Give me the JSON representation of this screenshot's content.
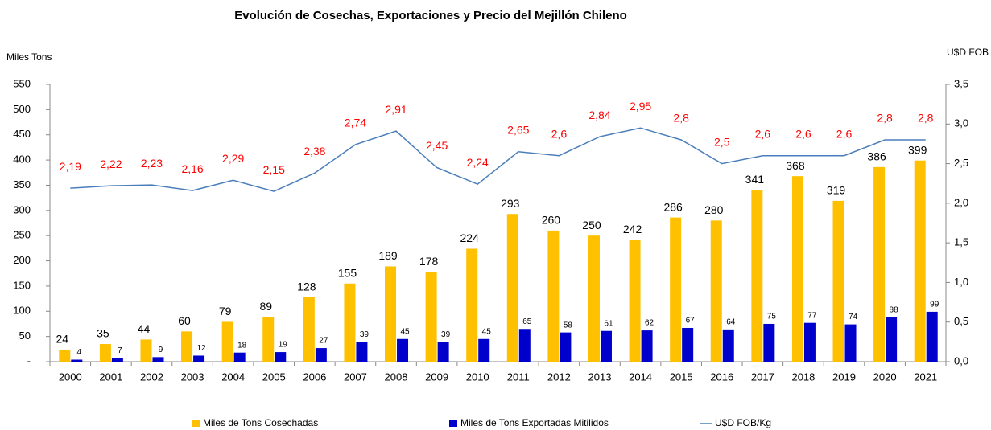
{
  "chart_data": {
    "type": "bar_line",
    "title": "Evolución de Cosechas, Exportaciones y Precio del Mejillón Chileno",
    "y_label": "Miles Tons",
    "y2_label": "U$D FOB",
    "categories": [
      "2000",
      "2001",
      "2002",
      "2003",
      "2004",
      "2005",
      "2006",
      "2007",
      "2008",
      "2009",
      "2010",
      "2011",
      "2012",
      "2013",
      "2014",
      "2015",
      "2016",
      "2017",
      "2018",
      "2019",
      "2020",
      "2021"
    ],
    "series": [
      {
        "name": "Miles de Tons Cosechadas",
        "type": "bar",
        "color": "#ffc000",
        "values": [
          24,
          35,
          44,
          60,
          79,
          89,
          128,
          155,
          189,
          178,
          224,
          293,
          260,
          250,
          242,
          286,
          280,
          341,
          368,
          319,
          386,
          399
        ]
      },
      {
        "name": "Miles de Tons Exportadas Mitilidos",
        "type": "bar",
        "color": "#0000cc",
        "values": [
          4,
          7,
          9,
          12,
          18,
          19,
          27,
          39,
          45,
          39,
          45,
          65,
          58,
          61,
          62,
          67,
          64,
          75,
          77,
          74,
          88,
          99
        ]
      },
      {
        "name": "U$D FOB/Kg",
        "type": "line",
        "axis": "y2",
        "color": "#4a7ebb",
        "values": [
          2.19,
          2.22,
          2.23,
          2.16,
          2.29,
          2.15,
          2.38,
          2.74,
          2.91,
          2.45,
          2.24,
          2.65,
          2.6,
          2.84,
          2.95,
          2.8,
          2.5,
          2.6,
          2.6,
          2.6,
          2.8,
          2.8
        ],
        "value_labels": [
          "2,19",
          "2,22",
          "2,23",
          "2,16",
          "2,29",
          "2,15",
          "2,38",
          "2,74",
          "2,91",
          "2,45",
          "2,24",
          "2,65",
          "2,6",
          "2,84",
          "2,95",
          "2,8",
          "2,5",
          "2,6",
          "2,6",
          "2,6",
          "2,8",
          "2,8"
        ]
      }
    ],
    "ylim": [
      0,
      550
    ],
    "yticks": [
      {
        "value": 0,
        "label": "-"
      },
      50,
      100,
      150,
      200,
      250,
      300,
      350,
      400,
      450,
      500,
      550
    ],
    "y2lim": [
      0,
      3.5
    ],
    "y2ticks": [
      {
        "value": 0,
        "label": "0,0"
      },
      {
        "value": 0.5,
        "label": "0,5"
      },
      {
        "value": 1,
        "label": "1,0"
      },
      {
        "value": 1.5,
        "label": "1,5"
      },
      {
        "value": 2,
        "label": "2,0"
      },
      {
        "value": 2.5,
        "label": "2,5"
      },
      {
        "value": 3,
        "label": "3,0"
      },
      {
        "value": 3.5,
        "label": "3,5"
      }
    ],
    "legend": "bottom"
  }
}
